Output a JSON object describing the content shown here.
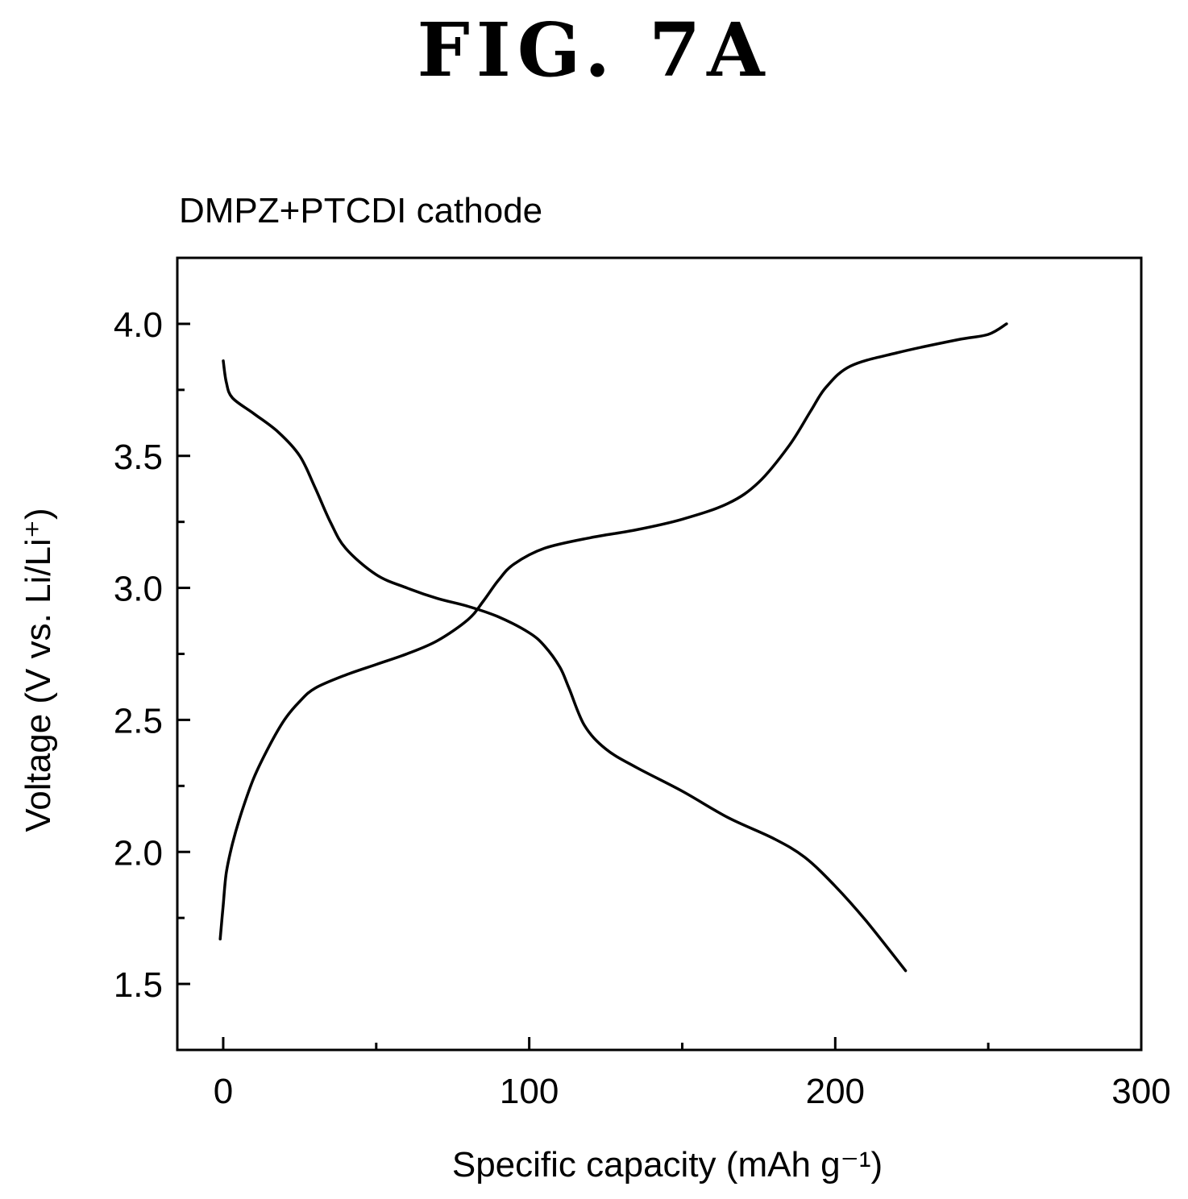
{
  "figure": {
    "label": "FIG. 7A"
  },
  "chart_data": {
    "type": "line",
    "title": "DMPZ+PTCDI cathode",
    "xlabel": "Specific capacity (mAh g⁻¹)",
    "ylabel": "Voltage (V vs. Li/Li⁺)",
    "xlim": [
      -15,
      300
    ],
    "ylim": [
      1.25,
      4.25
    ],
    "xticks": [
      0,
      100,
      200,
      300
    ],
    "xtick_labels": [
      "0",
      "100",
      "200",
      "300"
    ],
    "yticks": [
      1.5,
      2.0,
      2.5,
      3.0,
      3.5,
      4.0
    ],
    "ytick_labels": [
      "1.5",
      "2.0",
      "2.5",
      "3.0",
      "3.5",
      "4.0"
    ],
    "grid": false,
    "series": [
      {
        "x": [
          0,
          1,
          3,
          10,
          18,
          25,
          30,
          35,
          40,
          50,
          60,
          70,
          80,
          90,
          100,
          105,
          110,
          113,
          118,
          125,
          135,
          150,
          165,
          180,
          190,
          200,
          210,
          223
        ],
        "y": [
          3.86,
          3.78,
          3.72,
          3.66,
          3.59,
          3.5,
          3.38,
          3.25,
          3.15,
          3.05,
          3.0,
          2.96,
          2.93,
          2.89,
          2.83,
          2.78,
          2.7,
          2.62,
          2.48,
          2.39,
          2.32,
          2.23,
          2.13,
          2.05,
          1.98,
          1.87,
          1.74,
          1.55
        ]
      },
      {
        "x": [
          -1,
          0,
          1,
          3,
          6,
          10,
          15,
          20,
          25,
          30,
          40,
          50,
          60,
          70,
          80,
          85,
          90,
          95,
          105,
          120,
          135,
          150,
          165,
          175,
          185,
          192,
          197,
          205,
          220,
          240,
          250,
          256
        ],
        "y": [
          1.67,
          1.8,
          1.92,
          2.03,
          2.15,
          2.28,
          2.4,
          2.5,
          2.57,
          2.62,
          2.67,
          2.71,
          2.75,
          2.8,
          2.88,
          2.95,
          3.03,
          3.09,
          3.15,
          3.19,
          3.22,
          3.26,
          3.32,
          3.4,
          3.54,
          3.67,
          3.76,
          3.84,
          3.89,
          3.94,
          3.96,
          4.0
        ]
      }
    ]
  }
}
